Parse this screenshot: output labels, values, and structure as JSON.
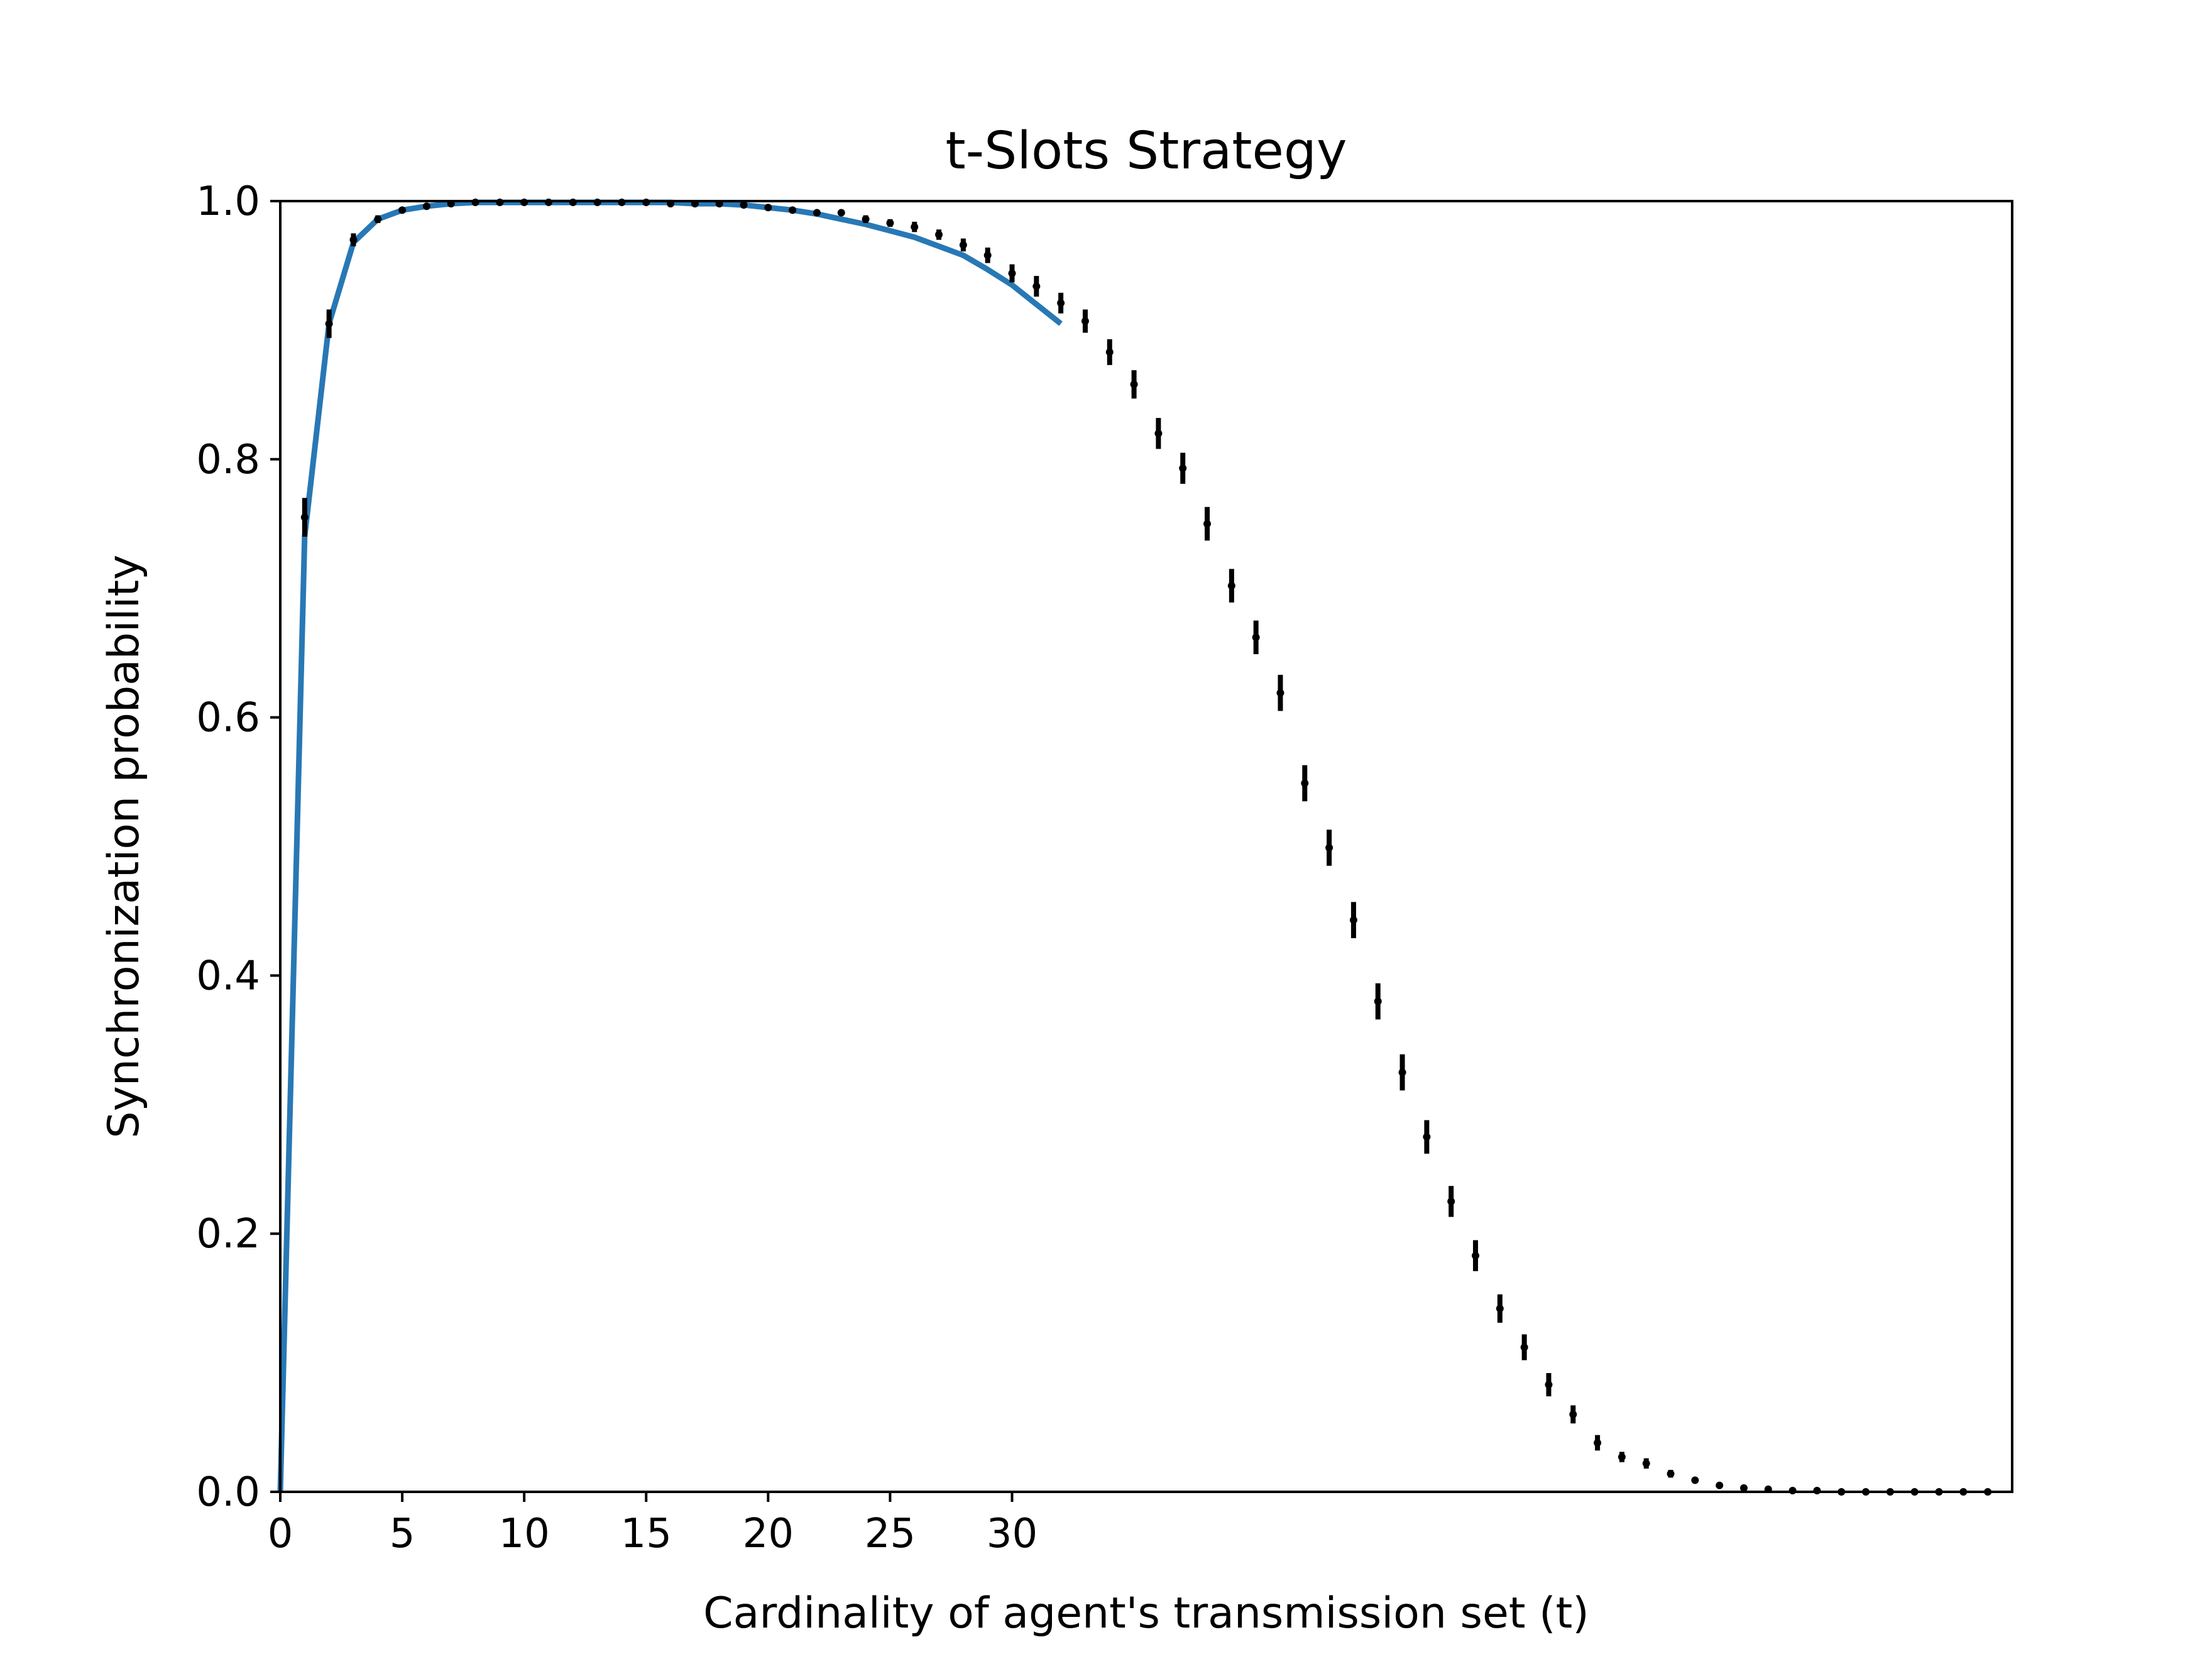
{
  "chart_data": {
    "type": "line",
    "title": "t-Slots Strategy",
    "xlabel": "Cardinality of agent's transmission set (t)",
    "ylabel": "Synchronization probability",
    "xlim": [
      0,
      71
    ],
    "ylim": [
      0,
      1
    ],
    "xticks": [
      0,
      5,
      10,
      15,
      20,
      25,
      30
    ],
    "yticks": [
      "0.0",
      "0.2",
      "0.4",
      "0.6",
      "0.8",
      "1.0"
    ],
    "grid": false,
    "colors": {
      "line": "#2878b5",
      "points": "#000000"
    },
    "series": [
      {
        "style": "solid-line",
        "x": [
          0,
          1,
          2,
          3,
          4,
          5,
          6,
          7,
          8,
          9,
          10,
          11,
          12,
          13,
          14,
          15,
          16,
          17,
          18,
          19,
          20,
          21,
          22,
          23,
          24,
          25,
          26,
          27,
          28,
          29,
          30,
          31,
          32
        ],
        "y": [
          0.0,
          0.74,
          0.905,
          0.968,
          0.986,
          0.993,
          0.996,
          0.998,
          0.999,
          0.999,
          0.999,
          0.999,
          0.999,
          0.999,
          0.999,
          0.999,
          0.999,
          0.998,
          0.998,
          0.997,
          0.995,
          0.993,
          0.99,
          0.986,
          0.982,
          0.977,
          0.972,
          0.965,
          0.958,
          0.947,
          0.935,
          0.92,
          0.905
        ]
      },
      {
        "style": "errorbar-points",
        "x": [
          1,
          2,
          3,
          4,
          5,
          6,
          7,
          8,
          9,
          10,
          11,
          12,
          13,
          14,
          15,
          16,
          17,
          18,
          19,
          20,
          21,
          22,
          23,
          24,
          25,
          26,
          27,
          28,
          29,
          30,
          31,
          32,
          33,
          34,
          35,
          36,
          37,
          38,
          39,
          40,
          41,
          42,
          43,
          44,
          45,
          46,
          47,
          48,
          49,
          50,
          51,
          52,
          53,
          54,
          55,
          56,
          57,
          58,
          59,
          60,
          61,
          62,
          63,
          64,
          65,
          66,
          67,
          68,
          69,
          70
        ],
        "y": [
          0.755,
          0.905,
          0.97,
          0.986,
          0.993,
          0.996,
          0.998,
          0.999,
          0.999,
          0.999,
          0.999,
          0.999,
          0.999,
          0.999,
          0.999,
          0.998,
          0.998,
          0.998,
          0.997,
          0.995,
          0.993,
          0.991,
          0.991,
          0.986,
          0.983,
          0.98,
          0.974,
          0.966,
          0.958,
          0.944,
          0.934,
          0.921,
          0.907,
          0.883,
          0.858,
          0.82,
          0.793,
          0.75,
          0.702,
          0.662,
          0.619,
          0.549,
          0.499,
          0.443,
          0.38,
          0.325,
          0.275,
          0.225,
          0.183,
          0.142,
          0.112,
          0.083,
          0.06,
          0.038,
          0.027,
          0.022,
          0.014,
          0.009,
          0.005,
          0.003,
          0.002,
          0.001,
          0.001,
          0.0,
          0.0,
          0.0,
          0.0,
          0.0,
          0.0,
          0.0
        ],
        "err": [
          0.015,
          0.011,
          0.005,
          0.003,
          0.002,
          0.001,
          0.001,
          0.001,
          0.001,
          0.001,
          0.001,
          0.001,
          0.001,
          0.001,
          0.001,
          0.001,
          0.001,
          0.001,
          0.001,
          0.002,
          0.002,
          0.002,
          0.002,
          0.003,
          0.003,
          0.004,
          0.004,
          0.005,
          0.006,
          0.007,
          0.008,
          0.008,
          0.009,
          0.01,
          0.011,
          0.012,
          0.012,
          0.013,
          0.013,
          0.013,
          0.014,
          0.014,
          0.014,
          0.014,
          0.014,
          0.014,
          0.013,
          0.012,
          0.012,
          0.011,
          0.01,
          0.009,
          0.007,
          0.006,
          0.004,
          0.004,
          0.003,
          0.002,
          0.001,
          0.001,
          0.001,
          0.0,
          0.0,
          0.0,
          0.0,
          0.0,
          0.0,
          0.0,
          0.0,
          0.0
        ]
      }
    ]
  }
}
